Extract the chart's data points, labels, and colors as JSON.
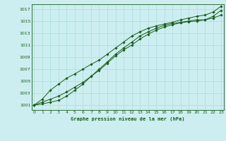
{
  "title": "Graphe pression niveau de la mer (hPa)",
  "bg_color": "#cceef0",
  "grid_color": "#aadddd",
  "line_color": "#1a5c1a",
  "xlim": [
    -0.3,
    23.3
  ],
  "ylim": [
    1000.2,
    1017.8
  ],
  "yticks": [
    1001,
    1003,
    1005,
    1007,
    1009,
    1011,
    1013,
    1015,
    1017
  ],
  "xticks": [
    0,
    1,
    2,
    3,
    4,
    5,
    6,
    7,
    8,
    9,
    10,
    11,
    12,
    13,
    14,
    15,
    16,
    17,
    18,
    19,
    20,
    21,
    22,
    23
  ],
  "series": [
    [
      1001.0,
      1001.5,
      1002.0,
      1002.5,
      1003.2,
      1004.0,
      1004.8,
      1005.8,
      1007.0,
      1008.2,
      1009.5,
      1010.5,
      1011.5,
      1012.5,
      1013.2,
      1013.8,
      1014.3,
      1014.6,
      1014.8,
      1015.0,
      1015.2,
      1015.2,
      1015.5,
      1016.0
    ],
    [
      1001.0,
      1001.2,
      1001.5,
      1001.8,
      1002.5,
      1003.5,
      1004.5,
      1005.8,
      1006.8,
      1008.0,
      1009.2,
      1010.2,
      1011.0,
      1012.0,
      1012.8,
      1013.5,
      1014.0,
      1014.4,
      1014.7,
      1014.9,
      1015.0,
      1015.2,
      1015.8,
      1016.8
    ],
    [
      1001.0,
      1002.0,
      1003.5,
      1004.5,
      1005.5,
      1006.2,
      1007.0,
      1007.8,
      1008.5,
      1009.5,
      1010.5,
      1011.5,
      1012.5,
      1013.2,
      1013.8,
      1014.2,
      1014.5,
      1014.8,
      1015.2,
      1015.5,
      1015.8,
      1016.0,
      1016.5,
      1017.5
    ]
  ]
}
